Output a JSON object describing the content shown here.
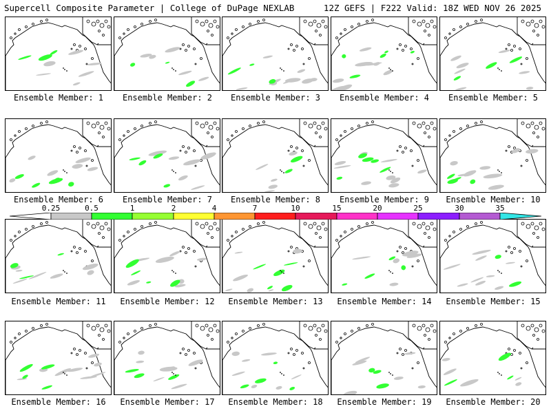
{
  "header": {
    "left_title": "Supercell Composite Parameter | College of DuPage NEXLAB",
    "right_title": "12Z GEFS | F222 Valid: 18Z WED NOV 26 2025"
  },
  "colorbar": {
    "ticks": [
      "0.25",
      "0.5",
      "1",
      "2",
      "4",
      "7",
      "10",
      "15",
      "20",
      "25",
      "30",
      "35"
    ],
    "colors": [
      "#c8c8c8",
      "#32ff32",
      "#96ff32",
      "#ffff32",
      "#ff9632",
      "#ff1e1e",
      "#e6195a",
      "#ff32c8",
      "#e632ff",
      "#8c1eff",
      "#b45ad2",
      "#32e6e6"
    ]
  },
  "members": [
    {
      "label": "Ensemble Member: 1"
    },
    {
      "label": "Ensemble Member: 2"
    },
    {
      "label": "Ensemble Member: 3"
    },
    {
      "label": "Ensemble Member: 4"
    },
    {
      "label": "Ensemble Member: 5"
    },
    {
      "label": "Ensemble Member: 6"
    },
    {
      "label": "Ensemble Member: 7"
    },
    {
      "label": "Ensemble Member: 8"
    },
    {
      "label": "Ensemble Member: 9"
    },
    {
      "label": "Ensemble Member: 10"
    },
    {
      "label": "Ensemble Member: 11"
    },
    {
      "label": "Ensemble Member: 12"
    },
    {
      "label": "Ensemble Member: 13"
    },
    {
      "label": "Ensemble Member: 14"
    },
    {
      "label": "Ensemble Member: 15"
    },
    {
      "label": "Ensemble Member: 16"
    },
    {
      "label": "Ensemble Member: 17"
    },
    {
      "label": "Ensemble Member: 18"
    },
    {
      "label": "Ensemble Member: 19"
    },
    {
      "label": "Ensemble Member: 20"
    }
  ]
}
